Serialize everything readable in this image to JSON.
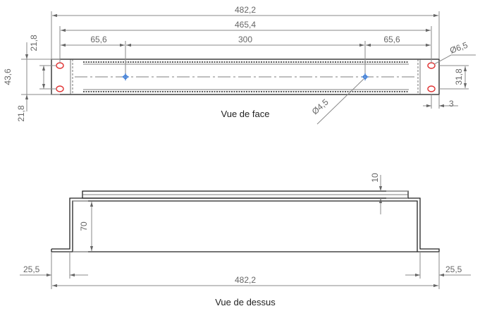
{
  "views": {
    "front": {
      "title": "Vue de face"
    },
    "top": {
      "title": "Vue de dessus"
    }
  },
  "dimensions": {
    "front_overall_width": "482,2",
    "front_hole_spacing": "465,4",
    "front_left_offset": "65,6",
    "front_center_spacing": "300",
    "front_right_offset": "65,6",
    "front_top_margin": "21,8",
    "front_bottom_margin": "21,8",
    "front_left_height": "43,6",
    "front_right_height": "31,8",
    "front_flange_thickness": "3",
    "front_mount_hole": "Ø6,5",
    "front_center_hole": "Ø4,5",
    "top_depth": "70",
    "top_plate_thickness": "10",
    "top_left_flange": "25,5",
    "top_right_flange": "25,5",
    "top_overall_width": "482,2"
  },
  "colors": {
    "mount_holes": "#e03030",
    "center_holes": "#2a6fd0"
  }
}
